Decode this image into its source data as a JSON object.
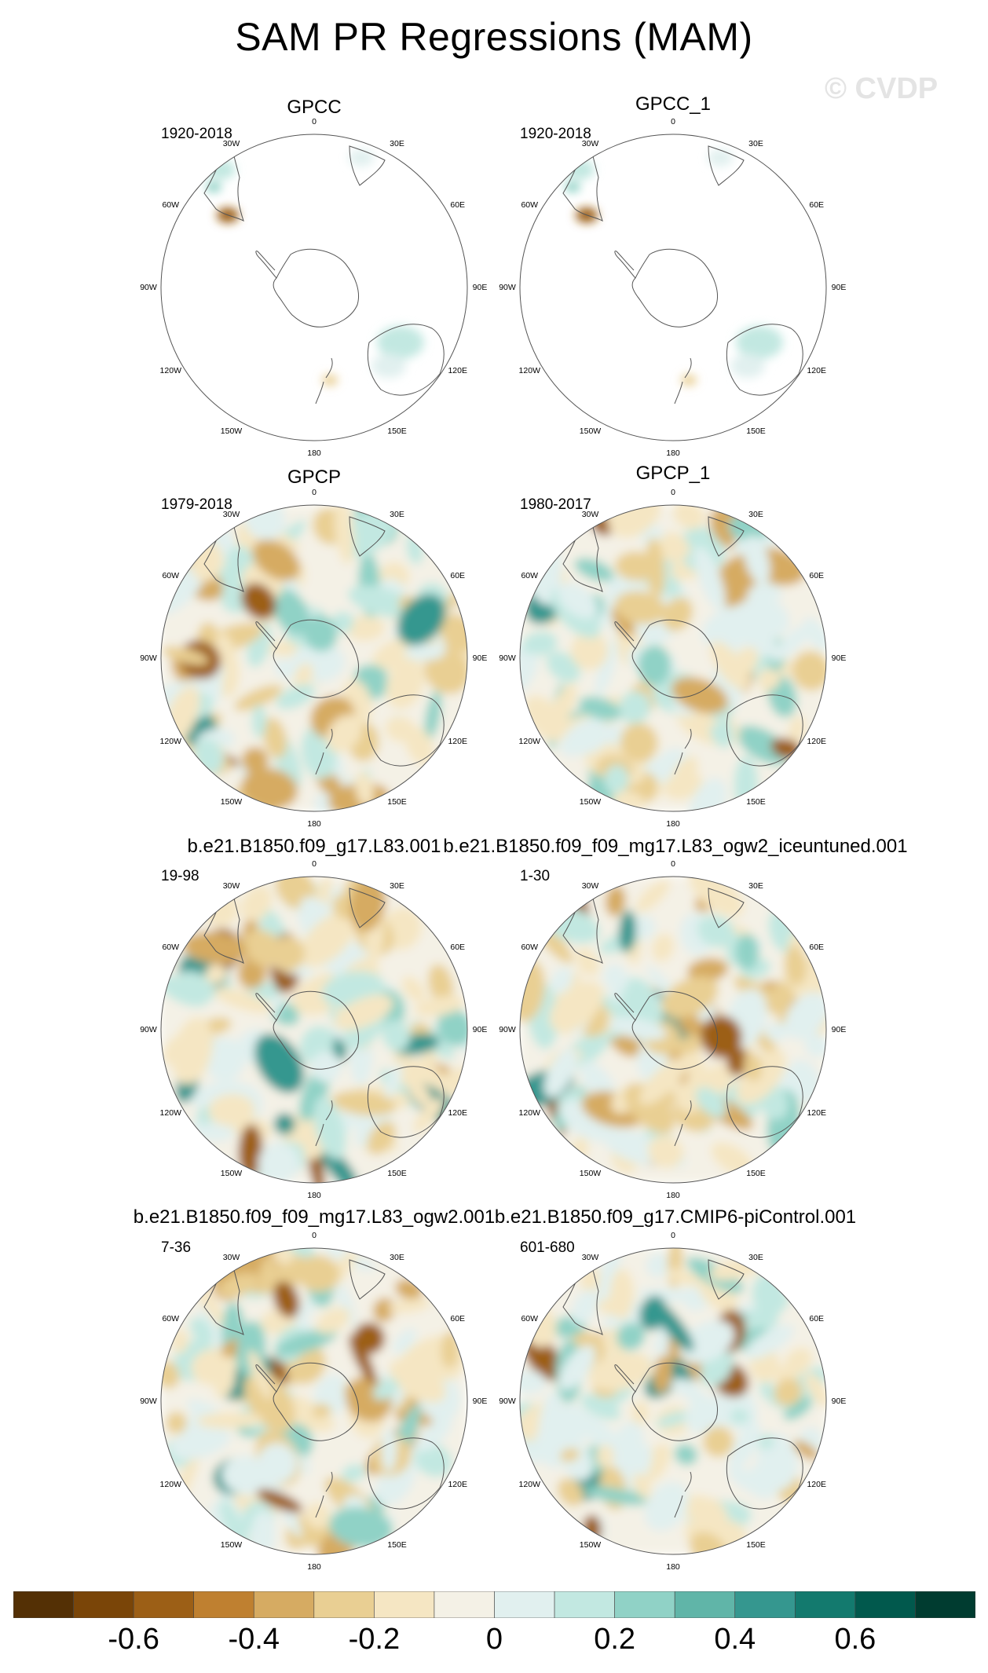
{
  "figure": {
    "title": "SAM PR Regressions (MAM)",
    "watermark": "© CVDP"
  },
  "longitude_labels": [
    "0",
    "30E",
    "60E",
    "90E",
    "120E",
    "150E",
    "180",
    "150W",
    "120W",
    "90W",
    "60W",
    "30W"
  ],
  "panels": [
    {
      "title": "GPCC",
      "period": "1920-2018",
      "data_coverage": "land-only"
    },
    {
      "title": "GPCC_1",
      "period": "1920-2018",
      "data_coverage": "land-only"
    },
    {
      "title": "GPCP",
      "period": "1979-2018",
      "data_coverage": "global"
    },
    {
      "title": "GPCP_1",
      "period": "1980-2017",
      "data_coverage": "global"
    },
    {
      "title": "b.e21.B1850.f09_g17.L83.001",
      "period": "19-98",
      "data_coverage": "global"
    },
    {
      "title": "b.e21.B1850.f09_f09_mg17.L83_ogw2_iceuntuned.001",
      "period": "1-30",
      "data_coverage": "global"
    },
    {
      "title": "b.e21.B1850.f09_f09_mg17.L83_ogw2.001",
      "period": "7-36",
      "data_coverage": "global"
    },
    {
      "title": "b.e21.B1850.f09_g17.CMIP6-piControl.001",
      "period": "601-680",
      "data_coverage": "global"
    }
  ],
  "colorbar": {
    "labels": [
      "-0.6",
      "-0.4",
      "-0.2",
      "0",
      "0.2",
      "0.4",
      "0.6"
    ],
    "colors": [
      "#543005",
      "#7a4508",
      "#9c5f16",
      "#bf8030",
      "#d6ab62",
      "#e9cf93",
      "#f5e6c3",
      "#f4f1e6",
      "#e1f0ef",
      "#c2e8e1",
      "#90d2c6",
      "#60b5a8",
      "#35978f",
      "#137a6e",
      "#01594d",
      "#003c30"
    ]
  }
}
